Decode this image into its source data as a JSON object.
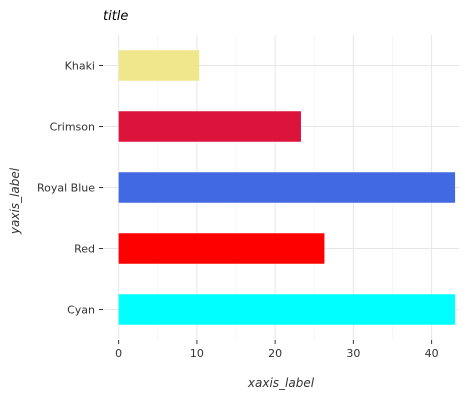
{
  "chart_data": {
    "type": "bar",
    "orientation": "horizontal",
    "title": "title",
    "xlabel": "xaxis_label",
    "ylabel": "yaxis_label",
    "categories": [
      "Cyan",
      "Red",
      "Royal Blue",
      "Crimson",
      "Khaki"
    ],
    "values": [
      43,
      26.3,
      43,
      23.3,
      10.3
    ],
    "colors": [
      "#00ffff",
      "#ff0000",
      "#4169e1",
      "#dc143c",
      "#f0e68c"
    ],
    "xlim": [
      -2,
      43.5
    ],
    "xticks": [
      0,
      10,
      20,
      30,
      40
    ],
    "xtick_labels": [
      "0",
      "10",
      "20",
      "30",
      "40"
    ],
    "grid": true,
    "legend": "none"
  }
}
